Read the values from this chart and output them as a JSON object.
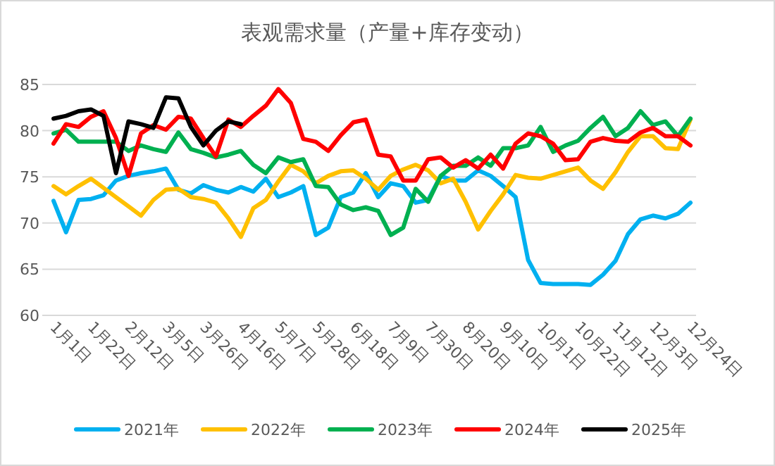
{
  "chart_data": {
    "type": "line",
    "title": "表观需求量（产量+库存变动）",
    "categories": [
      "1月1日",
      null,
      null,
      "1月22日",
      null,
      null,
      "2月12日",
      null,
      null,
      "3月5日",
      null,
      null,
      "3月26日",
      null,
      null,
      "4月16日",
      null,
      null,
      "5月7日",
      null,
      null,
      "5月28日",
      null,
      null,
      "6月18日",
      null,
      null,
      "7月9日",
      null,
      null,
      "7月30日",
      null,
      null,
      "8月20日",
      null,
      null,
      "9月10日",
      null,
      null,
      "10月1日",
      null,
      null,
      "10月22日",
      null,
      null,
      "11月12日",
      null,
      null,
      "12月3日",
      null,
      null,
      "12月24日"
    ],
    "series": [
      {
        "name": "2021年",
        "color": "#00b0f0",
        "values": [
          72.4,
          69.0,
          72.5,
          72.6,
          73.0,
          74.6,
          75.1,
          75.4,
          75.6,
          75.9,
          73.6,
          73.2,
          74.1,
          73.6,
          73.3,
          73.9,
          73.4,
          74.8,
          72.8,
          73.3,
          74.0,
          68.7,
          69.5,
          72.8,
          73.3,
          75.4,
          72.8,
          74.3,
          74.0,
          72.2,
          72.5,
          75.1,
          74.6,
          74.6,
          75.7,
          75.1,
          74.0,
          72.8,
          66.0,
          63.5,
          63.4,
          63.4,
          63.4,
          63.3,
          64.4,
          65.9,
          68.8,
          70.4,
          70.8,
          70.5,
          71.0,
          72.2
        ]
      },
      {
        "name": "2022年",
        "color": "#ffc000",
        "values": [
          74.0,
          73.1,
          74.0,
          74.8,
          73.8,
          72.8,
          71.8,
          70.8,
          72.5,
          73.6,
          73.7,
          72.8,
          72.6,
          72.2,
          70.5,
          68.5,
          71.6,
          72.5,
          74.5,
          76.3,
          75.6,
          74.3,
          75.1,
          75.6,
          75.7,
          74.8,
          73.6,
          75.1,
          75.8,
          76.3,
          75.7,
          74.3,
          74.8,
          72.3,
          69.3,
          71.3,
          73.1,
          75.2,
          74.9,
          74.8,
          75.2,
          75.6,
          76.0,
          74.6,
          73.7,
          75.5,
          77.7,
          79.4,
          79.4,
          78.1,
          78.0,
          81.2
        ]
      },
      {
        "name": "2023年",
        "color": "#00b050",
        "values": [
          79.7,
          80.1,
          78.8,
          78.8,
          78.8,
          78.8,
          77.8,
          78.4,
          78.0,
          77.7,
          79.8,
          78.0,
          77.6,
          77.1,
          77.4,
          77.8,
          76.3,
          75.4,
          77.1,
          76.6,
          76.9,
          74.0,
          73.9,
          72.0,
          71.4,
          71.7,
          71.3,
          68.7,
          69.5,
          73.7,
          72.3,
          75.1,
          76.2,
          76.2,
          77.1,
          76.2,
          78.1,
          78.1,
          78.4,
          80.4,
          77.7,
          78.4,
          78.9,
          80.3,
          81.5,
          79.4,
          80.3,
          82.1,
          80.6,
          81.0,
          79.4,
          81.3
        ]
      },
      {
        "name": "2024年",
        "color": "#ff0000",
        "values": [
          78.6,
          80.7,
          80.4,
          81.5,
          82.1,
          79.2,
          75.1,
          79.7,
          80.6,
          80.1,
          81.5,
          81.3,
          79.2,
          77.2,
          81.2,
          80.4,
          81.6,
          82.7,
          84.5,
          83.0,
          79.1,
          78.8,
          77.8,
          79.5,
          80.9,
          81.2,
          77.4,
          77.2,
          74.6,
          74.6,
          76.9,
          77.1,
          76.0,
          76.8,
          75.9,
          77.4,
          75.9,
          78.6,
          79.7,
          79.4,
          78.6,
          76.8,
          76.9,
          78.8,
          79.2,
          78.9,
          78.8,
          79.8,
          80.3,
          79.4,
          79.4,
          78.4
        ]
      },
      {
        "name": "2025年",
        "color": "#000000",
        "values": [
          81.3,
          81.6,
          82.1,
          82.3,
          81.6,
          75.4,
          81.0,
          80.7,
          80.3,
          83.6,
          83.5,
          80.4,
          78.4,
          80.0,
          81.0,
          80.7,
          null,
          null,
          null,
          null,
          null,
          null,
          null,
          null,
          null,
          null,
          null,
          null,
          null,
          null,
          null,
          null,
          null,
          null,
          null,
          null,
          null,
          null,
          null,
          null,
          null,
          null,
          null,
          null,
          null,
          null,
          null,
          null,
          null,
          null,
          null,
          null
        ]
      }
    ],
    "ylim": [
      60,
      85
    ],
    "yticks": [
      60,
      65,
      70,
      75,
      80,
      85
    ],
    "grid": "y",
    "legend": "bottom",
    "marker": "none",
    "line_style": "solid"
  }
}
